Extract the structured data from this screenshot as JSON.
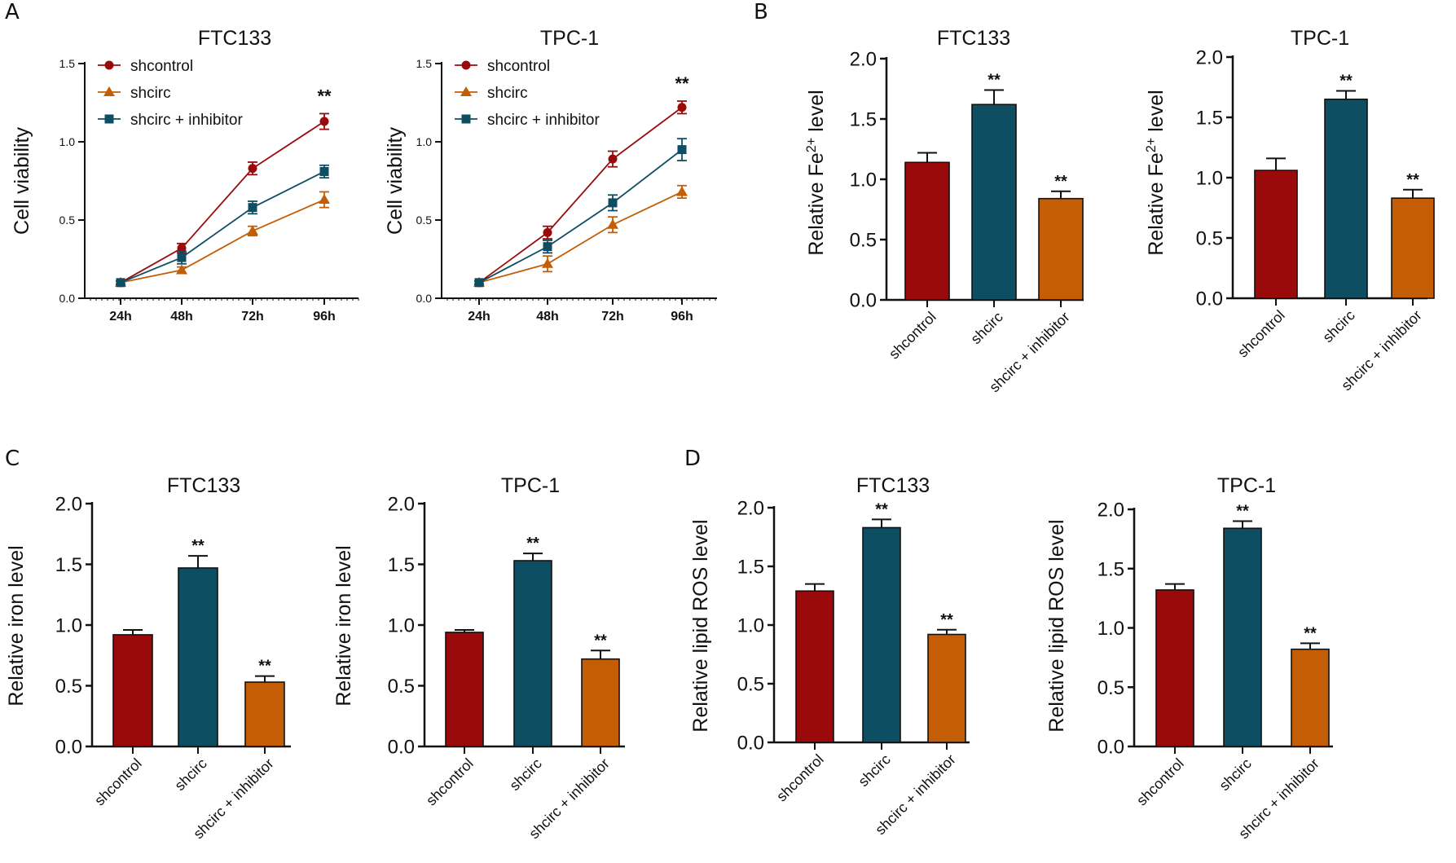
{
  "panel_labels": [
    "A",
    "B",
    "C",
    "D"
  ],
  "colors": {
    "shcontrol": "#9b0a0b",
    "shcirc": "#0d4e63",
    "inhibitor": "#c35e07",
    "axis": "#111111"
  },
  "chart_data": [
    {
      "id": "A-FTC133",
      "panel": "A",
      "type": "line",
      "title": "FTC133",
      "xlabel": "",
      "ylabel": "Cell viability",
      "categories": [
        "24h",
        "48h",
        "72h",
        "96h"
      ],
      "ylim": [
        0,
        1.5
      ],
      "yticks": [
        "0.0",
        "0.5",
        "1.0",
        "1.5"
      ],
      "legend": [
        "shcontrol",
        "shcirc",
        "shcirc + inhibitor"
      ],
      "series": [
        {
          "name": "shcontrol",
          "color": "#9b0a0b",
          "marker": "circle",
          "values": [
            0.1,
            0.32,
            0.83,
            1.13
          ],
          "errors": [
            0.01,
            0.03,
            0.04,
            0.05
          ]
        },
        {
          "name": "shcirc",
          "color": "#c35e07",
          "marker": "triangle",
          "values": [
            0.1,
            0.18,
            0.43,
            0.63
          ],
          "errors": [
            0.01,
            0.02,
            0.03,
            0.05
          ]
        },
        {
          "name": "shcirc + inhibitor",
          "color": "#0d4e63",
          "marker": "square",
          "values": [
            0.1,
            0.26,
            0.58,
            0.81
          ],
          "errors": [
            0.01,
            0.04,
            0.04,
            0.04
          ]
        }
      ],
      "annotations": [
        {
          "category": "96h",
          "text": "**"
        }
      ]
    },
    {
      "id": "A-TPC1",
      "panel": "A",
      "type": "line",
      "title": "TPC-1",
      "xlabel": "",
      "ylabel": "Cell viability",
      "categories": [
        "24h",
        "48h",
        "72h",
        "96h"
      ],
      "ylim": [
        0,
        1.5
      ],
      "yticks": [
        "0.0",
        "0.5",
        "1.0",
        "1.5"
      ],
      "legend": [
        "shcontrol",
        "shcirc",
        "shcirc + inhibitor"
      ],
      "series": [
        {
          "name": "shcontrol",
          "color": "#9b0a0b",
          "marker": "circle",
          "values": [
            0.1,
            0.42,
            0.89,
            1.22
          ],
          "errors": [
            0.01,
            0.04,
            0.05,
            0.04
          ]
        },
        {
          "name": "shcirc",
          "color": "#c35e07",
          "marker": "triangle",
          "values": [
            0.1,
            0.22,
            0.47,
            0.68
          ],
          "errors": [
            0.01,
            0.05,
            0.05,
            0.04
          ]
        },
        {
          "name": "shcirc + inhibitor",
          "color": "#0d4e63",
          "marker": "square",
          "values": [
            0.1,
            0.33,
            0.61,
            0.95
          ],
          "errors": [
            0.01,
            0.04,
            0.05,
            0.07
          ]
        }
      ],
      "annotations": [
        {
          "category": "96h",
          "text": "**"
        }
      ]
    },
    {
      "id": "B-FTC133",
      "panel": "B",
      "type": "bar",
      "title": "FTC133",
      "ylabel_html": "Relative Fe<tspan baseline-shift=\"super\" font-size=\"65%\">2+</tspan> level",
      "ylabel": "Relative Fe2+ level",
      "categories": [
        "shcontrol",
        "shcirc",
        "shcirc + inhibitor"
      ],
      "values": [
        1.14,
        1.62,
        0.84
      ],
      "errors": [
        0.08,
        0.12,
        0.06
      ],
      "significance": [
        "",
        "**",
        "**"
      ],
      "ylim": [
        0,
        2.0
      ],
      "yticks": [
        "0.0",
        "0.5",
        "1.0",
        "1.5",
        "2.0"
      ]
    },
    {
      "id": "B-TPC1",
      "panel": "B",
      "type": "bar",
      "title": "TPC-1",
      "ylabel": "Relative Fe2+ level",
      "categories": [
        "shcontrol",
        "shcirc",
        "shcirc + inhibitor"
      ],
      "values": [
        1.06,
        1.65,
        0.83
      ],
      "errors": [
        0.1,
        0.07,
        0.07
      ],
      "significance": [
        "",
        "**",
        "**"
      ],
      "ylim": [
        0,
        2.0
      ],
      "yticks": [
        "0.0",
        "0.5",
        "1.0",
        "1.5",
        "2.0"
      ]
    },
    {
      "id": "C-FTC133",
      "panel": "C",
      "type": "bar",
      "title": "FTC133",
      "ylabel": "Relative iron level",
      "categories": [
        "shcontrol",
        "shcirc",
        "shcirc + inhibitor"
      ],
      "values": [
        0.92,
        1.47,
        0.53
      ],
      "errors": [
        0.04,
        0.1,
        0.05
      ],
      "significance": [
        "",
        "**",
        "**"
      ],
      "ylim": [
        0,
        2.0
      ],
      "yticks": [
        "0.0",
        "0.5",
        "1.0",
        "1.5",
        "2.0"
      ]
    },
    {
      "id": "C-TPC1",
      "panel": "C",
      "type": "bar",
      "title": "TPC-1",
      "ylabel": "Relative iron level",
      "categories": [
        "shcontrol",
        "shcirc",
        "shcirc + inhibitor"
      ],
      "values": [
        0.94,
        1.53,
        0.72
      ],
      "errors": [
        0.02,
        0.06,
        0.07
      ],
      "significance": [
        "",
        "**",
        "**"
      ],
      "ylim": [
        0,
        2.0
      ],
      "yticks": [
        "0.0",
        "0.5",
        "1.0",
        "1.5",
        "2.0"
      ]
    },
    {
      "id": "D-FTC133",
      "panel": "D",
      "type": "bar",
      "title": "FTC133",
      "ylabel": "Relative lipid ROS level",
      "categories": [
        "shcontrol",
        "shcirc",
        "shcirc + inhibitor"
      ],
      "values": [
        1.29,
        1.83,
        0.92
      ],
      "errors": [
        0.06,
        0.07,
        0.04
      ],
      "significance": [
        "",
        "**",
        "**"
      ],
      "ylim": [
        0,
        2.0
      ],
      "yticks": [
        "0.0",
        "0.5",
        "1.0",
        "1.5",
        "2.0"
      ]
    },
    {
      "id": "D-TPC1",
      "panel": "D",
      "type": "bar",
      "title": "TPC-1",
      "ylabel": "Relative lipid ROS level",
      "categories": [
        "shcontrol",
        "shcirc",
        "shcirc + inhibitor"
      ],
      "values": [
        1.32,
        1.84,
        0.82
      ],
      "errors": [
        0.05,
        0.06,
        0.05
      ],
      "significance": [
        "",
        "**",
        "**"
      ],
      "ylim": [
        0,
        2.0
      ],
      "yticks": [
        "0.0",
        "0.5",
        "1.0",
        "1.5",
        "2.0"
      ]
    }
  ]
}
